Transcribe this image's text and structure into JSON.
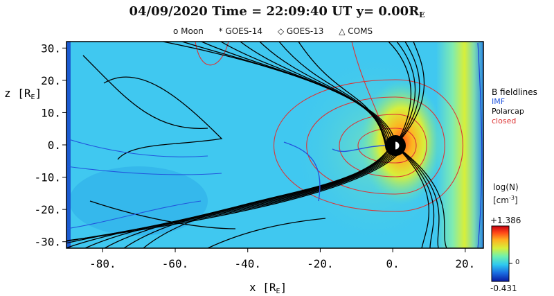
{
  "chart_data": {
    "type": "heatmap",
    "title_date": "04/09/2020",
    "title_time_label": "Time =",
    "title_time": "22:09:40",
    "title_ut": "UT",
    "title_y": "y= 0.00R",
    "title_y_sub": "E",
    "markers": [
      "o Moon",
      "* GOES-14",
      "◇ GOES-13",
      "△ COMS"
    ],
    "xlabel": "x [R",
    "xlabel_sub": "E",
    "xlabel_end": "]",
    "ylabel": "z [R",
    "ylabel_sub": "E",
    "ylabel_end": "]",
    "xlim": [
      -90,
      25
    ],
    "ylim": [
      -32,
      32
    ],
    "x_ticks": [
      "-80.",
      "-60.",
      "-40.",
      "-20.",
      "0.",
      "20."
    ],
    "x_tick_values": [
      -80,
      -60,
      -40,
      -20,
      0,
      20
    ],
    "y_ticks": [
      "30.",
      "20.",
      "10.",
      "0.",
      "-10.",
      "-20.",
      "-30."
    ],
    "y_tick_values": [
      30,
      20,
      10,
      0,
      -10,
      -20,
      -30
    ],
    "legend": {
      "title": "B fieldlines",
      "entries": [
        {
          "label": "IMF",
          "color": "#2255dd"
        },
        {
          "label": "Polarcap",
          "color": "#000000"
        },
        {
          "label": "closed",
          "color": "#dd3333"
        }
      ]
    },
    "colorbar": {
      "title": "log(N)",
      "unit": "[cm",
      "unit_sup": "-3",
      "unit_end": "]",
      "max": "+1.386",
      "min": "-0.431",
      "mid_label": "0",
      "colors": [
        "#0a1aa0",
        "#1a6ae0",
        "#2ec8f0",
        "#6ef0b0",
        "#d8ef3a",
        "#ffb020",
        "#ff4818",
        "#c80010"
      ]
    },
    "background_color": "#40c8f0"
  }
}
